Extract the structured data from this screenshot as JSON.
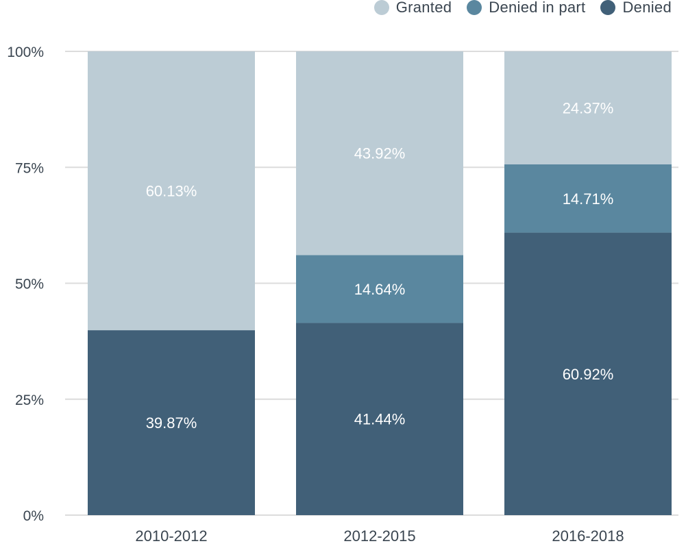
{
  "legend": {
    "items": [
      {
        "label": "Granted",
        "color": "#bcccd5"
      },
      {
        "label": "Denied in part",
        "color": "#5a879f"
      },
      {
        "label": "Denied",
        "color": "#416078"
      }
    ]
  },
  "chart_data": {
    "type": "bar",
    "stacked": true,
    "categories": [
      "2010-2012",
      "2012-2015",
      "2016-2018"
    ],
    "series": [
      {
        "name": "Denied",
        "color": "#416078",
        "values": [
          39.87,
          41.44,
          60.92
        ],
        "labels": [
          "39.87%",
          "41.44%",
          "60.92%"
        ]
      },
      {
        "name": "Denied in part",
        "color": "#5a879f",
        "values": [
          0,
          14.64,
          14.71
        ],
        "labels": [
          "",
          "14.64%",
          "14.71%"
        ]
      },
      {
        "name": "Granted",
        "color": "#bcccd5",
        "values": [
          60.13,
          43.92,
          24.37
        ],
        "labels": [
          "60.13%",
          "43.92%",
          "24.37%"
        ]
      }
    ],
    "ylim": [
      0,
      100
    ],
    "yticks": [
      0,
      25,
      50,
      75,
      100
    ],
    "ytick_labels": [
      "0%",
      "25%",
      "50%",
      "75%",
      "100%"
    ],
    "grid": true,
    "legend_position": "top-right",
    "title": "",
    "xlabel": "",
    "ylabel": ""
  }
}
